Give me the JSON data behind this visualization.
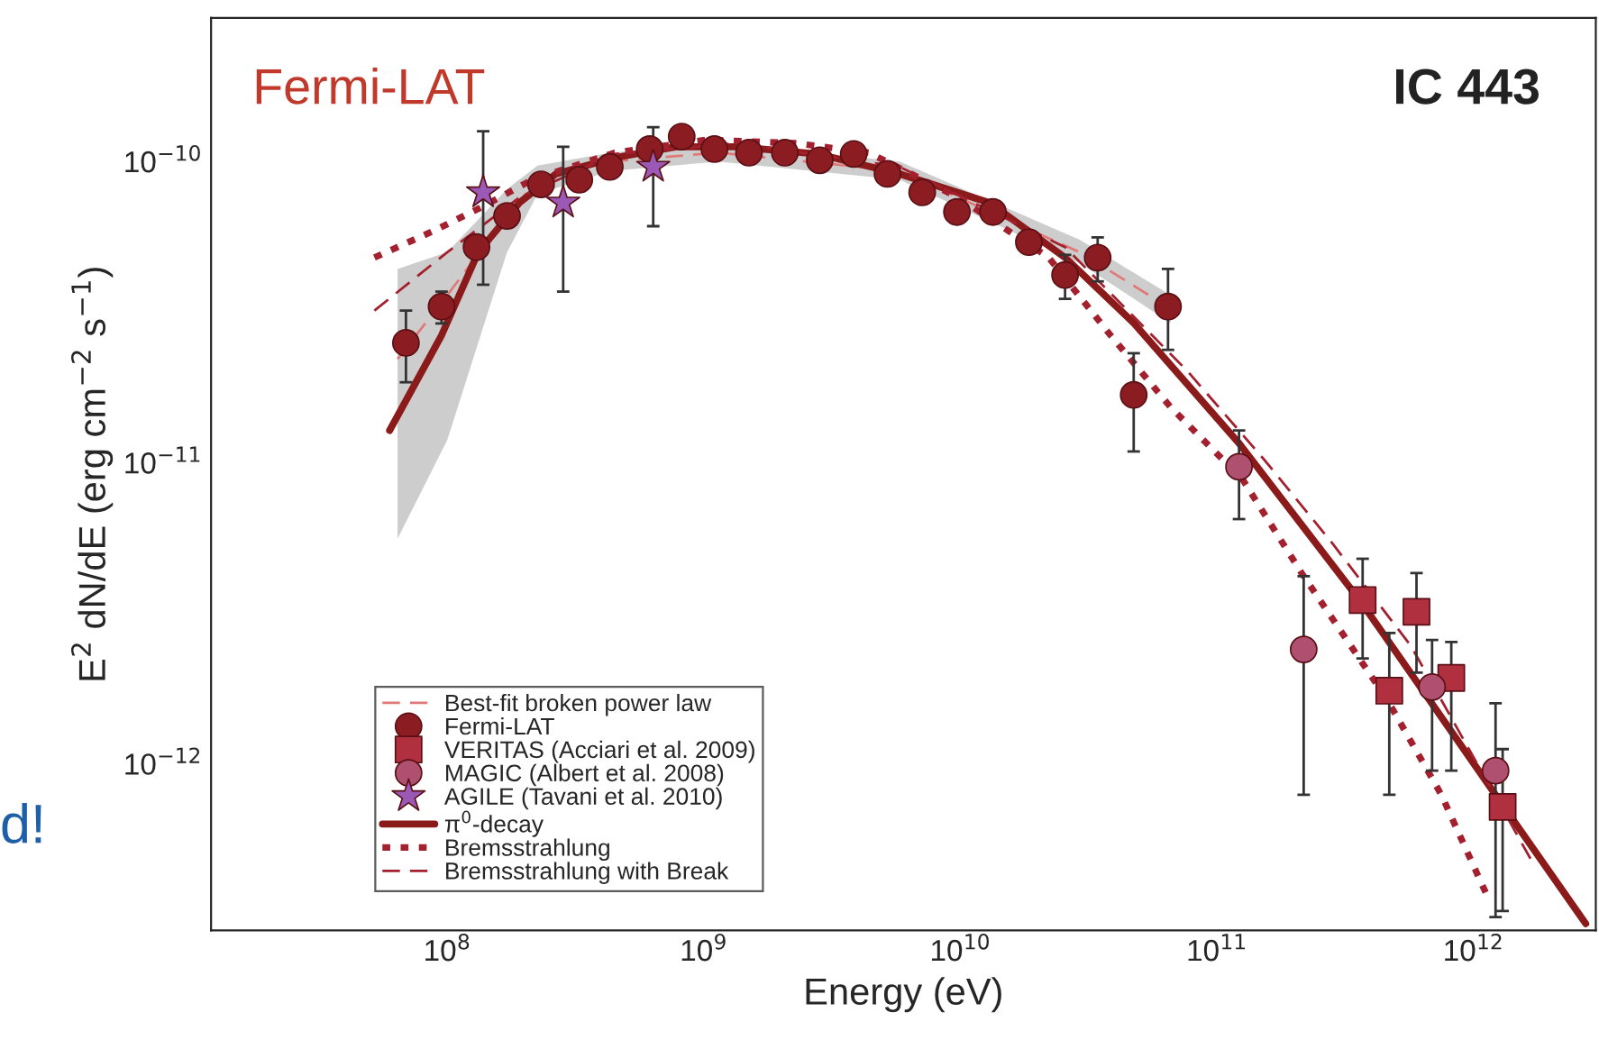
{
  "chart_data": {
    "type": "scatter",
    "xlabel": "Energy (eV)",
    "ylabel": "E$^{2}$ dN/dE (erg cm$^{−2}$ s$^{−1}$)",
    "log": "xy",
    "xlim": [
      12000000.0,
      3000000000000.0
    ],
    "ylim": [
      2.8e-13,
      3e-10
    ],
    "xticks": [
      {
        "value": 100000000.0,
        "label": "10$^{8}$"
      },
      {
        "value": 1000000000.0,
        "label": "10$^{9}$"
      },
      {
        "value": 10000000000.0,
        "label": "10$^{10}$"
      },
      {
        "value": 100000000000.0,
        "label": "10$^{11}$"
      },
      {
        "value": 1000000000000.0,
        "label": "10$^{12}$"
      }
    ],
    "yticks": [
      {
        "value": 1e-12,
        "label": "10$^{−12}$"
      },
      {
        "value": 1e-11,
        "label": "10$^{−11}$"
      },
      {
        "value": 1e-10,
        "label": "10$^{−10}$"
      }
    ],
    "legend": "bottom left",
    "annotations": [
      "Fermi-LAT",
      "IC 443",
      "d!"
    ],
    "series": [
      {
        "name": "Best-fit broken power law",
        "type": "line",
        "line_style": "dashed",
        "color": "#e07a7a",
        "x": [
          64000000.0,
          100000000.0,
          171000000.0,
          225000000.0,
          430000000.0,
          1140000000.0,
          5800000000.0,
          29200000000.0,
          66000000000.0
        ],
        "values": [
          2.21e-11,
          3.6e-11,
          6.6e-11,
          8.7e-11,
          1e-10,
          1.07e-10,
          9.3e-11,
          5e-11,
          3.25e-11
        ],
        "lower": [
          5.6e-12,
          1.19e-11,
          5e-11,
          7.8e-11,
          9.3e-11,
          1e-10,
          8.7e-11,
          4.6e-11,
          2.91e-11
        ],
        "upper": [
          4.4e-11,
          5e-11,
          8.1e-11,
          9.7e-11,
          1.07e-10,
          1.15e-10,
          1e-10,
          5.5e-11,
          3.6e-11
        ]
      },
      {
        "name": "Fermi-LAT",
        "marker": "circle",
        "color": "#8b1c22",
        "x": [
          69000000.0,
          95000000.0,
          130000000.0,
          171000000.0,
          232000000.0,
          327000000.0,
          430000000.0,
          615000000.0,
          820000000.0,
          1100000000.0,
          1500000000.0,
          2070000000.0,
          2830000000.0,
          3840000000.0,
          5200000000.0,
          7100000000.0,
          9700000000.0,
          13400000000.0,
          18500000000.0,
          25600000000.0,
          34300000000.0,
          47400000000.0,
          64500000000.0
        ],
        "values": [
          2.5e-11,
          3.3e-11,
          5.2e-11,
          6.6e-11,
          8.4e-11,
          8.7e-11,
          9.6e-11,
          1.1e-10,
          1.21e-10,
          1.1e-10,
          1.07e-10,
          1.07e-10,
          1.01e-10,
          1.06e-10,
          9.1e-11,
          7.9e-11,
          6.8e-11,
          6.8e-11,
          5.4e-11,
          4.2e-11,
          4.8e-11,
          1.68e-11,
          3.3e-11
        ],
        "errors": [
          [
            1.85e-11,
            3.2e-11
          ],
          [
            2.9e-11,
            3.7e-11
          ],
          null,
          null,
          null,
          null,
          null,
          null,
          null,
          null,
          null,
          null,
          null,
          null,
          null,
          null,
          null,
          null,
          null,
          [
            3.5e-11,
            4.9e-11
          ],
          [
            4e-11,
            5.6e-11
          ],
          [
            1.09e-11,
            2.31e-11
          ],
          [
            2.37e-11,
            4.4e-11
          ]
        ]
      },
      {
        "name": "VERITAS (Acciari et al. 2009)",
        "marker": "square",
        "color": "#b03040",
        "x": [
          370000000000.0,
          470000000000.0,
          600000000000.0,
          820000000000.0,
          1300000000000.0
        ],
        "values": [
          3.5e-12,
          1.75e-12,
          3.2e-12,
          1.93e-12,
          7.2e-13
        ],
        "errors": [
          [
            2.24e-12,
            4.8e-12
          ],
          [
            7.9e-13,
            2.72e-12
          ],
          [
            2.01e-12,
            4.3e-12
          ],
          [
            9.5e-13,
            2.54e-12
          ],
          [
            3.25e-13,
            1.12e-12
          ]
        ]
      },
      {
        "name": "MAGIC (Albert et al. 2008)",
        "marker": "circle",
        "color": "#b05070",
        "x": [
          122000000000.0,
          218000000000.0,
          690000000000.0,
          1220000000000.0
        ],
        "values": [
          9.7e-12,
          2.4e-12,
          1.8e-12,
          9.5e-13
        ],
        "errors": [
          [
            6.5e-12,
            1.28e-11
          ],
          [
            7.9e-13,
            4.2e-12
          ],
          [
            9.5e-13,
            2.58e-12
          ],
          [
            3.1e-13,
            1.59e-12
          ]
        ]
      },
      {
        "name": "AGILE (Tavani et al. 2010)",
        "marker": "star",
        "color": "#9b59b6",
        "x": [
          138000000.0,
          283000000.0,
          635000000.0
        ],
        "values": [
          7.9e-11,
          7.3e-11,
          9.6e-11
        ],
        "errors": [
          [
            3.9e-11,
            1.26e-10
          ],
          [
            3.7e-11,
            1.12e-10
          ],
          [
            6.1e-11,
            1.3e-10
          ]
        ]
      },
      {
        "name": "π$^{0}$-decay",
        "type": "line",
        "line_style": "solid",
        "color": "#8b1a1a",
        "x": [
          59600000.0,
          95000000.0,
          132000000.0,
          191000000.0,
          265000000.0,
          450000000.0,
          780000000.0,
          1340000000.0,
          2780000000.0,
          5800000000.0,
          13000000000.0,
          25600000000.0,
          47400000000.0,
          122000000000.0,
          370000000000.0,
          1220000000000.0,
          2740000000000.0
        ],
        "values": [
          1.28e-11,
          2.65e-11,
          5e-11,
          7.3e-11,
          9.1e-11,
          1.03e-10,
          1.12e-10,
          1.12e-10,
          1.06e-10,
          9.1e-11,
          7.3e-11,
          4.8e-11,
          2.91e-11,
          1.16e-11,
          3.39e-12,
          7.9e-13,
          2.95e-13
        ]
      },
      {
        "name": "Bremsstrahlung",
        "type": "line",
        "line_style": "dotted",
        "color": "#a3202e",
        "x": [
          52000000.0,
          89000000.0,
          138000000.0,
          214000000.0,
          450000000.0,
          1020000000.0,
          2280000000.0,
          4400000000.0,
          9800000000.0,
          22100000000.0,
          38500000000.0,
          66000000000.0,
          126000000000.0,
          214000000000.0,
          460000000000.0,
          750000000000.0,
          1160000000000.0
        ],
        "values": [
          4.8e-11,
          5.9e-11,
          7.1e-11,
          8.7e-11,
          1.07e-10,
          1.18e-10,
          1.15e-10,
          1.07e-10,
          7.6e-11,
          4.8e-11,
          2.65e-11,
          1.53e-11,
          8.8e-12,
          4.3e-12,
          1.64e-12,
          7.9e-13,
          3.48e-13
        ]
      },
      {
        "name": "Bremsstrahlung with Break",
        "type": "line",
        "line_style": "dashed",
        "color": "#a3202e",
        "x": [
          52000000.0,
          100000000.0,
          191000000.0,
          450000000.0,
          1340000000.0,
          5800000000.0,
          25600000000.0,
          77000000000.0,
          155000000000.0,
          282000000000.0,
          570000000000.0,
          1680000000000.0
        ],
        "values": [
          3.2e-11,
          5e-11,
          7.6e-11,
          1.06e-10,
          1.15e-10,
          9.6e-11,
          5.2e-11,
          2.01e-11,
          1.01e-11,
          5.4e-12,
          2.47e-12,
          4.8e-13
        ]
      }
    ]
  }
}
